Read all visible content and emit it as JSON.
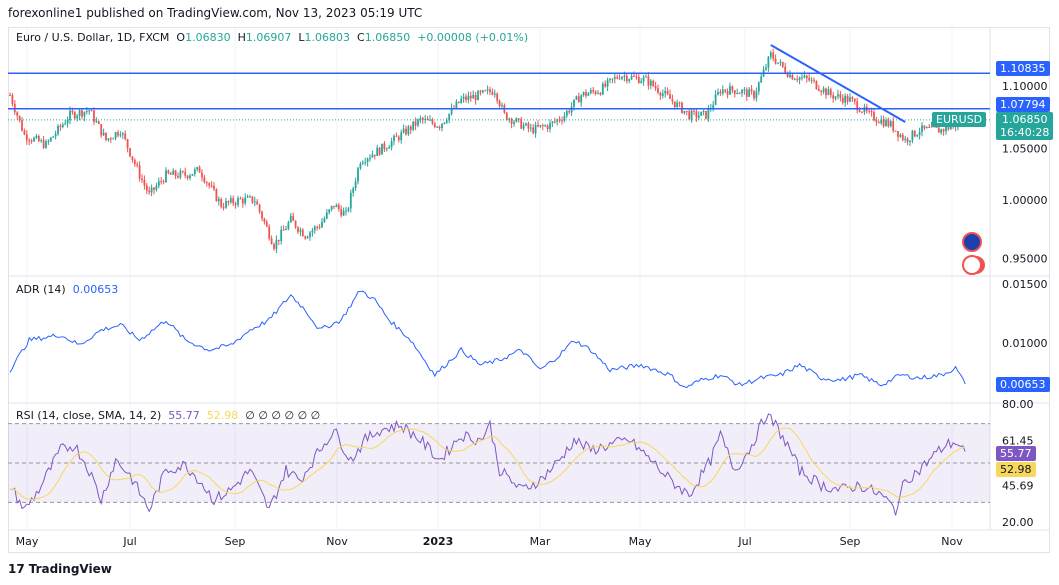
{
  "header": {
    "published": "forexonline1 published on TradingView.com, Nov 13, 2023 05:19 UTC"
  },
  "legend": {
    "symbol": "Euro / U.S. Dollar, 1D, FXCM",
    "o_label": "O",
    "o": "1.06830",
    "h_label": "H",
    "h": "1.06907",
    "l_label": "L",
    "l": "1.06803",
    "c_label": "C",
    "c": "1.06850",
    "change": "+0.00008 (+0.01%)"
  },
  "adr": {
    "label": "ADR (14)",
    "value": "0.00653"
  },
  "rsi": {
    "label": "RSI (14, close, SMA, 14, 2)",
    "value": "55.77",
    "sma": "52.98",
    "extras": "∅ ∅ ∅ ∅ ∅ ∅"
  },
  "tags": {
    "level1": "1.10835",
    "level2": "1.07794",
    "symbol": "EURUSD",
    "price": "1.06850",
    "countdown": "16:40:28",
    "rsi": "55.77",
    "rsi_sma": "52.98",
    "adr": "0.00653"
  },
  "footer": {
    "brand": "TradingView"
  },
  "colors": {
    "up": "#26a69a",
    "down": "#ef5350",
    "level": "#2962ff",
    "adr": "#2962ff",
    "rsi": "#7e57c2",
    "sma": "#f7d85c"
  },
  "chart_data": [
    {
      "type": "candlestick",
      "title": "Euro / U.S. Dollar, 1D, FXCM",
      "x_unit": "trading day index",
      "ylim": [
        0.93,
        1.14
      ],
      "y_ticks": [
        "1.10000",
        "1.05000",
        "1.00000",
        "0.95000"
      ],
      "x_ticks": [
        "May",
        "Jul",
        "Sep",
        "Nov",
        "2023",
        "Mar",
        "May",
        "Jul",
        "Sep",
        "Nov"
      ],
      "horizontal_levels": [
        1.10835,
        1.07794
      ],
      "trendline": [
        [
          317,
          1.1325
        ],
        [
          373,
          1.0667
        ]
      ],
      "close_path": [
        [
          0,
          1.0897
        ],
        [
          6,
          1.0556
        ],
        [
          15,
          1.047
        ],
        [
          25,
          1.0726
        ],
        [
          33,
          1.0769
        ],
        [
          40,
          1.0513
        ],
        [
          46,
          1.0598
        ],
        [
          54,
          1.0214
        ],
        [
          58,
          1.0043
        ],
        [
          65,
          1.0214
        ],
        [
          73,
          1.0214
        ],
        [
          79,
          1.0256
        ],
        [
          88,
          0.9957
        ],
        [
          96,
          1.0
        ],
        [
          102,
          1.0
        ],
        [
          110,
          0.9615
        ],
        [
          117,
          0.9829
        ],
        [
          123,
          0.9701
        ],
        [
          129,
          0.9786
        ],
        [
          135,
          0.9957
        ],
        [
          140,
          0.9872
        ],
        [
          146,
          1.0342
        ],
        [
          154,
          1.0427
        ],
        [
          163,
          1.0556
        ],
        [
          171,
          1.0684
        ],
        [
          179,
          1.0641
        ],
        [
          188,
          1.0855
        ],
        [
          196,
          1.0897
        ],
        [
          202,
          1.094
        ],
        [
          206,
          1.0726
        ],
        [
          217,
          1.0598
        ],
        [
          225,
          1.0641
        ],
        [
          231,
          1.0726
        ],
        [
          238,
          1.0897
        ],
        [
          246,
          1.094
        ],
        [
          254,
          1.1068
        ],
        [
          265,
          1.1026
        ],
        [
          273,
          1.0897
        ],
        [
          283,
          1.0726
        ],
        [
          290,
          1.0726
        ],
        [
          296,
          1.094
        ],
        [
          302,
          1.094
        ],
        [
          310,
          1.0897
        ],
        [
          317,
          1.1239
        ],
        [
          325,
          1.1068
        ],
        [
          333,
          1.1026
        ],
        [
          342,
          1.0897
        ],
        [
          350,
          1.0855
        ],
        [
          358,
          1.0726
        ],
        [
          367,
          1.0641
        ],
        [
          373,
          1.0513
        ],
        [
          379,
          1.0598
        ],
        [
          388,
          1.0598
        ],
        [
          394,
          1.0641
        ],
        [
          398,
          1.0685
        ]
      ]
    },
    {
      "type": "line",
      "title": "ADR (14)",
      "ylim": [
        0.0055,
        0.0155
      ],
      "y_ticks": [
        "0.01500",
        "0.01000"
      ],
      "points": [
        [
          0,
          0.00771
        ],
        [
          8,
          0.01025
        ],
        [
          21,
          0.01068
        ],
        [
          29,
          0.00983
        ],
        [
          38,
          0.0111
        ],
        [
          46,
          0.01153
        ],
        [
          54,
          0.01025
        ],
        [
          65,
          0.01195
        ],
        [
          73,
          0.01025
        ],
        [
          83,
          0.00941
        ],
        [
          92,
          0.00983
        ],
        [
          100,
          0.0111
        ],
        [
          108,
          0.01195
        ],
        [
          117,
          0.01407
        ],
        [
          123,
          0.0128
        ],
        [
          129,
          0.0111
        ],
        [
          138,
          0.01195
        ],
        [
          146,
          0.01449
        ],
        [
          152,
          0.01364
        ],
        [
          158,
          0.01195
        ],
        [
          167,
          0.01025
        ],
        [
          177,
          0.00729
        ],
        [
          188,
          0.00941
        ],
        [
          196,
          0.00814
        ],
        [
          204,
          0.00856
        ],
        [
          213,
          0.00941
        ],
        [
          221,
          0.00771
        ],
        [
          229,
          0.00898
        ],
        [
          235,
          0.01025
        ],
        [
          242,
          0.00941
        ],
        [
          250,
          0.00771
        ],
        [
          263,
          0.00814
        ],
        [
          275,
          0.00729
        ],
        [
          281,
          0.00619
        ],
        [
          288,
          0.00686
        ],
        [
          296,
          0.00729
        ],
        [
          304,
          0.00644
        ],
        [
          313,
          0.00703
        ],
        [
          321,
          0.00729
        ],
        [
          329,
          0.00814
        ],
        [
          338,
          0.00703
        ],
        [
          346,
          0.00686
        ],
        [
          354,
          0.00729
        ],
        [
          363,
          0.00644
        ],
        [
          371,
          0.00729
        ],
        [
          379,
          0.00703
        ],
        [
          388,
          0.00729
        ],
        [
          394,
          0.00788
        ],
        [
          398,
          0.00653
        ]
      ]
    },
    {
      "type": "line",
      "title": "RSI (14, close, SMA, 14, 2)",
      "ylim": [
        20,
        80
      ],
      "y_ticks": [
        "80.00",
        "61.45",
        "45.69",
        "20.00"
      ],
      "bands": [
        30,
        70
      ],
      "points": [
        [
          0,
          38.8
        ],
        [
          6,
          26.1
        ],
        [
          12,
          36.3
        ],
        [
          21,
          56.6
        ],
        [
          27,
          59.2
        ],
        [
          33,
          46.4
        ],
        [
          38,
          31.2
        ],
        [
          44,
          51.5
        ],
        [
          50,
          43.9
        ],
        [
          58,
          26.1
        ],
        [
          65,
          46.4
        ],
        [
          73,
          49.0
        ],
        [
          79,
          41.4
        ],
        [
          85,
          31.2
        ],
        [
          92,
          36.3
        ],
        [
          100,
          46.4
        ],
        [
          108,
          26.1
        ],
        [
          115,
          46.4
        ],
        [
          121,
          41.4
        ],
        [
          129,
          56.6
        ],
        [
          135,
          66.8
        ],
        [
          142,
          51.5
        ],
        [
          148,
          61.7
        ],
        [
          154,
          66.8
        ],
        [
          163,
          69.3
        ],
        [
          171,
          61.7
        ],
        [
          179,
          51.5
        ],
        [
          188,
          64.2
        ],
        [
          196,
          61.7
        ],
        [
          200,
          69.3
        ],
        [
          204,
          46.4
        ],
        [
          213,
          36.3
        ],
        [
          221,
          41.4
        ],
        [
          229,
          51.5
        ],
        [
          235,
          61.7
        ],
        [
          242,
          56.6
        ],
        [
          250,
          59.2
        ],
        [
          258,
          61.7
        ],
        [
          267,
          51.5
        ],
        [
          275,
          41.4
        ],
        [
          283,
          33.7
        ],
        [
          292,
          51.5
        ],
        [
          296,
          64.2
        ],
        [
          302,
          46.4
        ],
        [
          308,
          56.6
        ],
        [
          315,
          74.4
        ],
        [
          319,
          69.3
        ],
        [
          325,
          56.6
        ],
        [
          329,
          46.4
        ],
        [
          338,
          38.8
        ],
        [
          346,
          36.3
        ],
        [
          354,
          38.8
        ],
        [
          363,
          33.7
        ],
        [
          369,
          26.1
        ],
        [
          373,
          41.4
        ],
        [
          379,
          46.4
        ],
        [
          385,
          54.1
        ],
        [
          390,
          59.2
        ],
        [
          394,
          60.7
        ],
        [
          398,
          55.8
        ]
      ]
    }
  ]
}
